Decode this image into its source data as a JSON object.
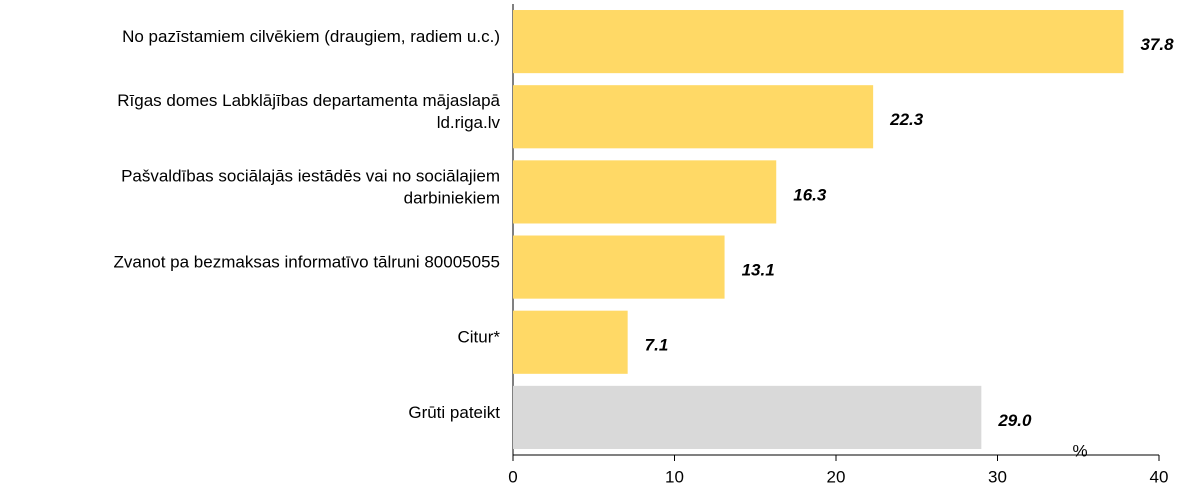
{
  "chart_data": {
    "type": "bar",
    "orientation": "horizontal",
    "categories": [
      [
        "No pazīstamiem cilvēkiem (draugiem, radiem u.c.)"
      ],
      [
        "Rīgas domes Labklājības departamenta mājaslapā",
        "ld.riga.lv"
      ],
      [
        "Pašvaldības sociālajās iestādēs vai no sociālajiem",
        "darbiniekiem"
      ],
      [
        "Zvanot pa bezmaksas informatīvo tālruni 80005055"
      ],
      [
        "Citur*"
      ],
      [
        "Grūti pateikt"
      ]
    ],
    "values": [
      37.8,
      22.3,
      16.3,
      13.1,
      7.1,
      29.0
    ],
    "value_labels": [
      "37.8",
      "22.3",
      "16.3",
      "13.1",
      "7.1",
      "29.0"
    ],
    "colors": [
      "#FFD966",
      "#FFD966",
      "#FFD966",
      "#FFD966",
      "#FFD966",
      "#D9D9D9"
    ],
    "xlabel": "%",
    "xlim": [
      0,
      40
    ],
    "xticks": [
      0,
      10,
      20,
      30,
      40
    ]
  }
}
